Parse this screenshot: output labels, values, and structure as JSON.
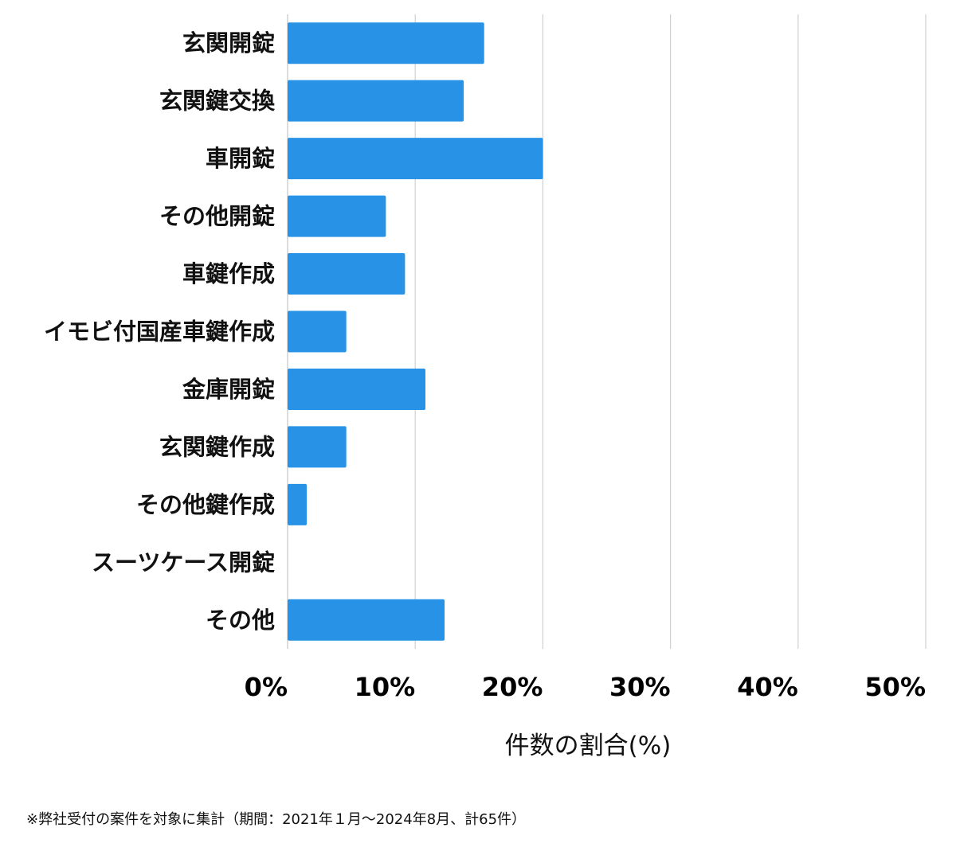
{
  "chart_data": {
    "type": "bar",
    "orientation": "horizontal",
    "categories": [
      "玄関開錠",
      "玄関鍵交換",
      "車開錠",
      "その他開錠",
      "車鍵作成",
      "イモビ付国産車鍵作成",
      "金庫開錠",
      "玄関鍵作成",
      "その他鍵作成",
      "スーツケース開錠",
      "その他"
    ],
    "values": [
      15.4,
      13.8,
      20.0,
      7.7,
      9.2,
      4.6,
      10.8,
      4.6,
      1.5,
      0,
      12.3
    ],
    "xlim": [
      0,
      50
    ],
    "xticks": [
      0,
      10,
      20,
      30,
      40,
      50
    ],
    "xtick_labels": [
      "0%",
      "10%",
      "20%",
      "30%",
      "40%",
      "50%"
    ],
    "xlabel": "件数の割合(%)",
    "grid": true,
    "bar_color": "#2893e6",
    "grid_color": "#d0d0d0"
  },
  "footnote": "※弊社受付の案件を対象に集計（期間：2021年１月〜2024年8月、計65件）"
}
